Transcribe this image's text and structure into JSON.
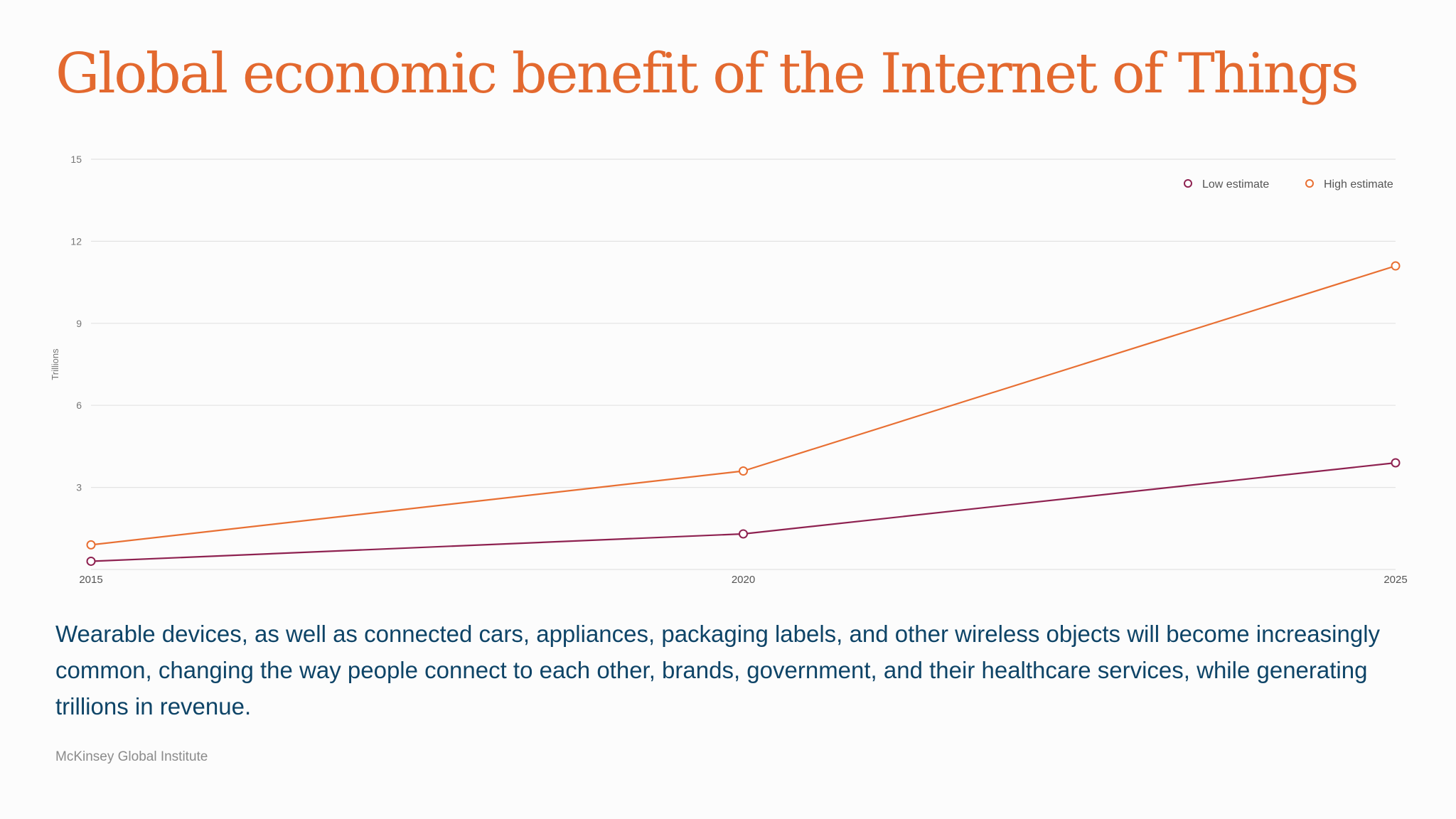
{
  "title": "Global economic benefit of the Internet of Things",
  "description": "Wearable devices, as well as connected cars, appliances, packaging labels, and other wireless objects will become increasingly common, changing the way people connect to each other, brands, government, and their healthcare services, while generating trillions in revenue.",
  "source": "McKinsey Global Institute",
  "colors": {
    "title": "#e3692f",
    "low_estimate": "#8e2150",
    "high_estimate": "#e86f32",
    "description": "#0e4467",
    "grid": "#e3e3e3"
  },
  "chart_data": {
    "type": "line",
    "x": [
      2015,
      2020,
      2025
    ],
    "x_tick_labels": [
      "2015",
      "2020",
      "2025"
    ],
    "ylabel": "Trillions",
    "ylim": [
      0,
      15
    ],
    "y_ticks": [
      3,
      6,
      9,
      12,
      15
    ],
    "grid": true,
    "legend_position": "top-right",
    "series": [
      {
        "name": "Low estimate",
        "color": "#8e2150",
        "values": [
          0.3,
          1.3,
          3.9
        ]
      },
      {
        "name": "High estimate",
        "color": "#e86f32",
        "values": [
          0.9,
          3.6,
          11.1
        ]
      }
    ]
  }
}
